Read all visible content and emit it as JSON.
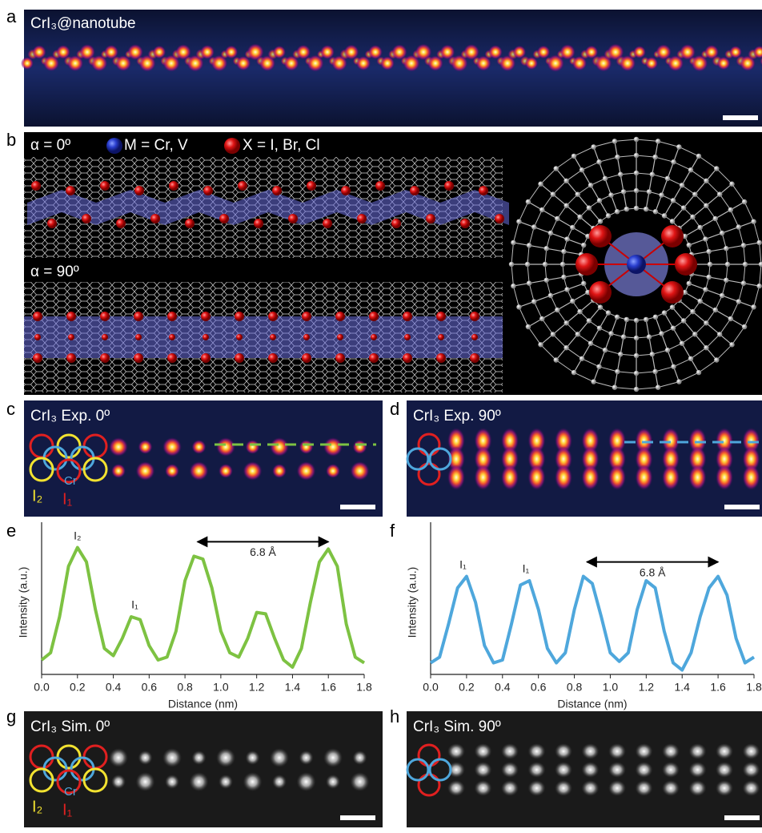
{
  "panels": {
    "a": {
      "label": "a",
      "title": "CrI₃@nanotube"
    },
    "b": {
      "label": "b",
      "view_0": "α = 0º",
      "view_90": "α = 90º",
      "legend_m": "M = Cr, V",
      "legend_x": "X = I, Br, Cl"
    },
    "c": {
      "label": "c",
      "title": "CrI₃ Exp. 0º",
      "site_cr": "Cr",
      "site_i2": "I₂",
      "site_i1": "I₁"
    },
    "d": {
      "label": "d",
      "title": "CrI₃ Exp. 90º"
    },
    "e": {
      "label": "e"
    },
    "f": {
      "label": "f"
    },
    "g": {
      "label": "g",
      "title": "CrI₃ Sim. 0º",
      "site_cr": "Cr",
      "site_i2": "I₂",
      "site_i1": "I₁"
    },
    "h": {
      "label": "h",
      "title": "CrI₃ Sim. 90º"
    }
  },
  "chart_data": [
    {
      "type": "line",
      "xlabel": "Distance (nm)",
      "ylabel": "Intensity (a.u.)",
      "color": "#7dc242",
      "x": [
        0,
        0.05,
        0.1,
        0.15,
        0.2,
        0.25,
        0.3,
        0.35,
        0.4,
        0.45,
        0.5,
        0.55,
        0.6,
        0.65,
        0.7,
        0.75,
        0.8,
        0.85,
        0.9,
        0.95,
        1,
        1.05,
        1.1,
        1.15,
        1.2,
        1.25,
        1.3,
        1.35,
        1.4,
        1.45,
        1.5,
        1.55,
        1.6,
        1.65,
        1.7,
        1.75,
        1.8
      ],
      "values": [
        1.0,
        1.5,
        4.0,
        7.5,
        8.8,
        7.8,
        4.5,
        1.8,
        1.3,
        2.5,
        4.0,
        3.8,
        2.0,
        1.0,
        1.2,
        3.0,
        6.5,
        8.2,
        8.0,
        6.0,
        3.0,
        1.5,
        1.2,
        2.5,
        4.3,
        4.2,
        2.5,
        1.0,
        0.5,
        1.8,
        5.0,
        7.8,
        8.7,
        7.5,
        3.5,
        1.2,
        0.8
      ],
      "xlim": [
        0,
        1.8
      ],
      "ylim": [
        0,
        10
      ],
      "xticks": [
        {
          "value": 0,
          "label": "0.0"
        },
        0.2,
        0.4,
        0.6,
        0.8,
        {
          "value": 1,
          "label": "1.0"
        },
        1.2,
        1.4,
        1.6,
        1.8
      ],
      "annotations": [
        {
          "text": "I₂",
          "x": 0.2,
          "y": 8.8
        },
        {
          "text": "I₁",
          "x": 0.52,
          "y": 4.0
        }
      ],
      "span": {
        "text": "6.8 Å",
        "x": [
          0.87,
          1.6
        ],
        "y": 9.2
      }
    },
    {
      "type": "line",
      "xlabel": "Distance (nm)",
      "ylabel": "Intensity (a.u.)",
      "color": "#4ea7dc",
      "x": [
        0,
        0.05,
        0.1,
        0.15,
        0.2,
        0.25,
        0.3,
        0.35,
        0.4,
        0.45,
        0.5,
        0.55,
        0.6,
        0.65,
        0.7,
        0.75,
        0.8,
        0.85,
        0.9,
        0.95,
        1,
        1.05,
        1.1,
        1.15,
        1.2,
        1.25,
        1.3,
        1.35,
        1.4,
        1.45,
        1.5,
        1.55,
        1.6,
        1.65,
        1.7,
        1.75,
        1.8
      ],
      "values": [
        0.8,
        1.2,
        3.5,
        6.0,
        6.8,
        5.0,
        2.0,
        0.8,
        1.0,
        3.5,
        6.2,
        6.5,
        4.5,
        1.8,
        0.8,
        1.5,
        4.5,
        6.8,
        6.3,
        4.0,
        1.5,
        0.9,
        1.5,
        4.5,
        6.5,
        6.0,
        3.0,
        0.8,
        0.3,
        1.5,
        4.0,
        6.0,
        6.8,
        5.5,
        2.5,
        0.8,
        1.2
      ],
      "xlim": [
        0,
        1.8
      ],
      "ylim": [
        0,
        10
      ],
      "xticks": [
        {
          "value": 0,
          "label": "0.0"
        },
        0.2,
        0.4,
        0.6,
        0.8,
        {
          "value": 1,
          "label": "1.0"
        },
        1.2,
        1.4,
        1.6,
        1.8
      ],
      "annotations": [
        {
          "text": "I₁",
          "x": 0.18,
          "y": 6.8
        },
        {
          "text": "I₁",
          "x": 0.53,
          "y": 6.5
        }
      ],
      "span": {
        "text": "6.8 Å",
        "x": [
          0.87,
          1.6
        ],
        "y": 7.8
      }
    }
  ]
}
